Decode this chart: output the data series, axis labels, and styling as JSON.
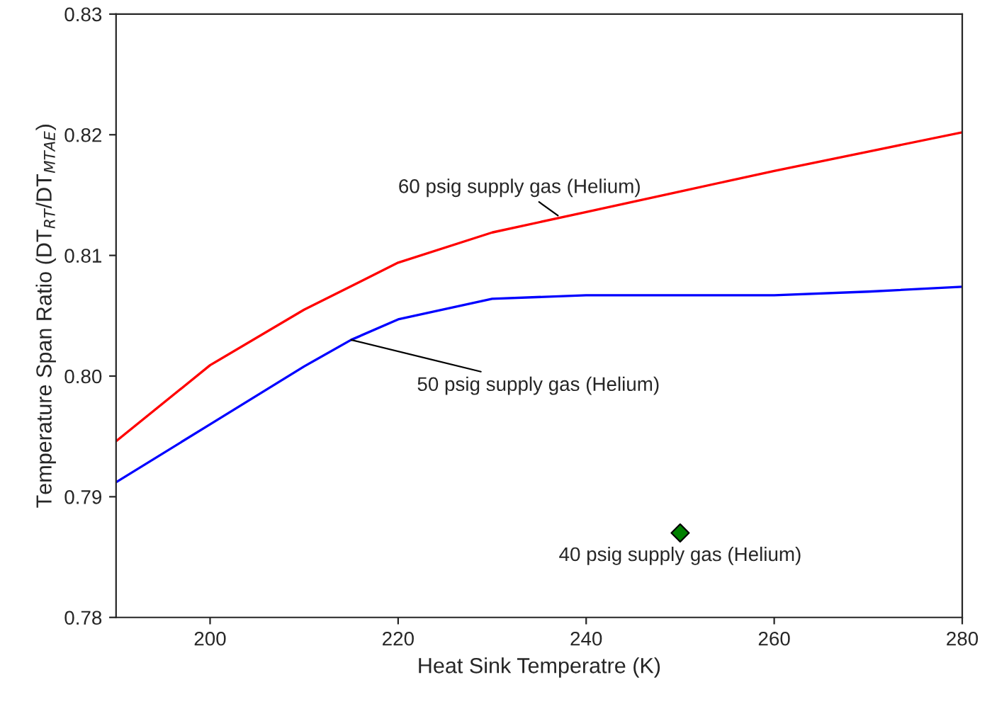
{
  "chart_data": {
    "type": "line",
    "xlabel": "Heat Sink Temperatre (K)",
    "ylabel": "Temperature Span Ratio (DT$_{RT}$/DT$_{MTAE}$)",
    "xlim": [
      190,
      280
    ],
    "xticks": [
      200,
      220,
      240,
      260,
      280
    ],
    "ylim": [
      0.78,
      0.83
    ],
    "yticks": [
      {
        "value": 0.78,
        "label": "0.78"
      },
      {
        "value": 0.79,
        "label": "0.79"
      },
      {
        "value": 0.8,
        "label": "0.80"
      },
      {
        "value": 0.81,
        "label": "0.81"
      },
      {
        "value": 0.82,
        "label": "0.82"
      },
      {
        "value": 0.83,
        "label": "0.83"
      }
    ],
    "grid": false,
    "legend": false,
    "series": [
      {
        "color": "#ff0000",
        "marker": "none",
        "x": [
          190,
          200,
          210,
          220,
          230,
          240,
          250,
          260,
          270,
          280
        ],
        "values": [
          0.7946,
          0.8009,
          0.8055,
          0.8094,
          0.8119,
          0.8136,
          0.8153,
          0.817,
          0.8186,
          0.8202
        ]
      },
      {
        "color": "#0000ff",
        "marker": "none",
        "x": [
          190,
          200,
          210,
          215,
          220,
          230,
          240,
          250,
          260,
          270,
          280
        ],
        "values": [
          0.7912,
          0.796,
          0.8008,
          0.803,
          0.8047,
          0.8064,
          0.8067,
          0.8067,
          0.8067,
          0.807,
          0.8074
        ]
      },
      {
        "type": "scatter",
        "color": "#008000",
        "marker": "diamond",
        "x": [
          250
        ],
        "values": [
          0.787
        ]
      }
    ],
    "annotations": [
      {
        "text": "60 psig supply gas (Helium)",
        "x": 237,
        "y": 0.8133
      },
      {
        "text": "50 psig supply gas (Helium)",
        "x": 215,
        "y": 0.803
      },
      {
        "text": "40 psig supply gas (Helium)",
        "x": 250,
        "y": 0.787
      }
    ]
  }
}
